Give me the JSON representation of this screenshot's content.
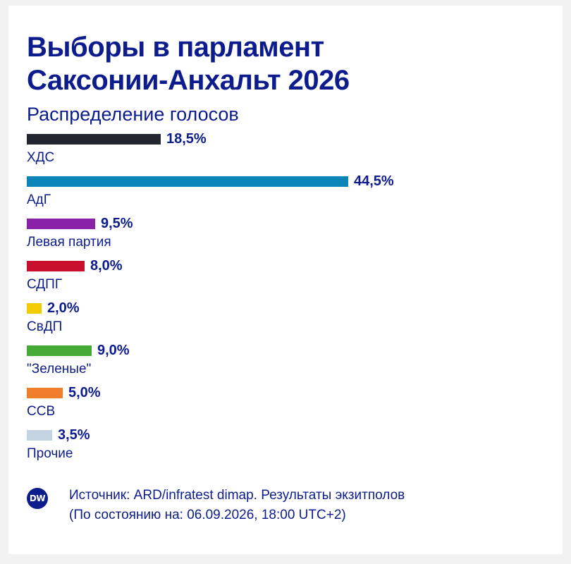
{
  "chart_data": {
    "type": "bar",
    "orientation": "horizontal",
    "title": "Выборы в парламент Саксонии-Анхальт 2026",
    "subtitle": "Распределение голосов",
    "categories": [
      "ХДС",
      "АдГ",
      "Левая партия",
      "СДПГ",
      "СвДП",
      "\"Зеленые\"",
      "ССВ",
      "Прочие"
    ],
    "values": [
      18.5,
      44.5,
      9.5,
      8.0,
      2.0,
      9.0,
      5.0,
      3.5
    ],
    "value_labels": [
      "18,5%",
      "44,5%",
      "9,5%",
      "8,0%",
      "2,0%",
      "9,0%",
      "5,0%",
      "3,5%"
    ],
    "colors": [
      "#23262f",
      "#0b85b8",
      "#8a22a8",
      "#c8102e",
      "#f2cc00",
      "#45a935",
      "#f07d2b",
      "#c5d4e2"
    ],
    "grid": false,
    "legend": "none"
  },
  "header": {
    "title_line1": "Выборы в парламент",
    "title_line2": "Саксонии-Анхальт 2026",
    "subtitle": "Распределение голосов"
  },
  "footer": {
    "logo_text": "DW",
    "source": "Источник: ARD/infratest dimap. Результаты экзитполов",
    "status": "(По состоянию на: 06.09.2026, 18:00 UTC+2)"
  }
}
